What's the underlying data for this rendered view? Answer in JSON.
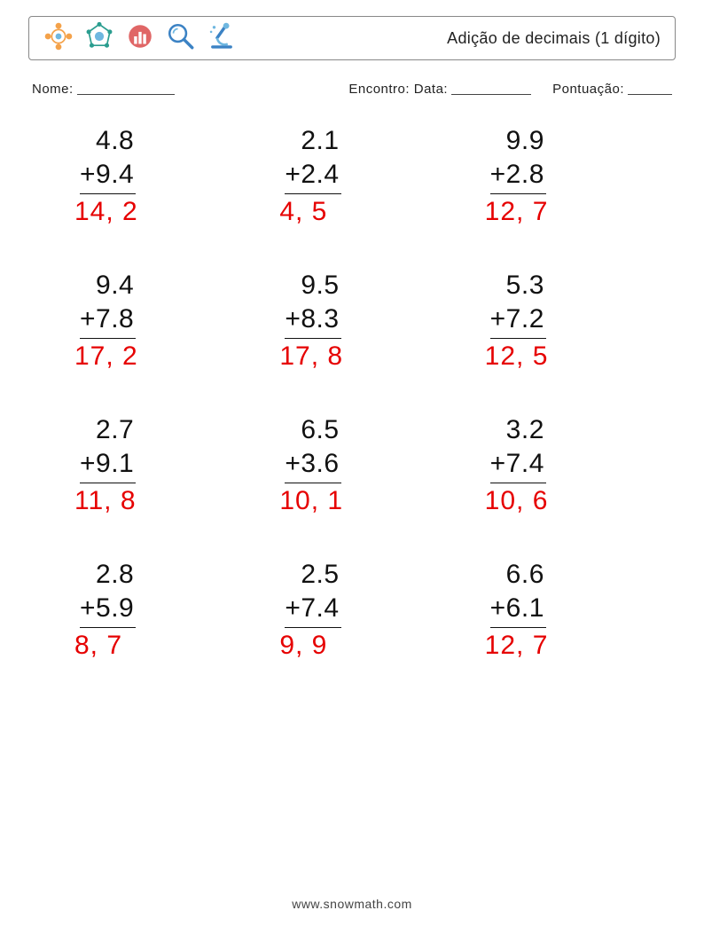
{
  "header": {
    "title": "Adição de decimais (1 dígito)",
    "icons": [
      "network-icon",
      "globe-icon",
      "chart-icon",
      "magnifier-icon",
      "microscope-icon"
    ],
    "icon_palette": {
      "orange": "#f4a24a",
      "blue": "#3b82c4",
      "teal": "#2a9d8f",
      "red": "#e06666",
      "lightblue": "#6fb7e0"
    }
  },
  "meta": {
    "name_label": "Nome:",
    "encounter_label": "Encontro: Data:",
    "score_label": "Pontuação:",
    "name_line_width": 110,
    "date_line_width": 90,
    "score_line_width": 50
  },
  "layout": {
    "rows": 4,
    "cols": 3,
    "problem_fontsize": 30,
    "answer_color": "#e60000",
    "text_color": "#111111",
    "background": "#ffffff"
  },
  "problems": [
    {
      "a": "4.8",
      "b": "+9.4",
      "ans": "14, 2"
    },
    {
      "a": "2.1",
      "b": "+2.4",
      "ans": "4, 5"
    },
    {
      "a": "9.9",
      "b": "+2.8",
      "ans": "12, 7"
    },
    {
      "a": "9.4",
      "b": "+7.8",
      "ans": "17, 2"
    },
    {
      "a": "9.5",
      "b": "+8.3",
      "ans": "17, 8"
    },
    {
      "a": "5.3",
      "b": "+7.2",
      "ans": "12, 5"
    },
    {
      "a": "2.7",
      "b": "+9.1",
      "ans": "11, 8"
    },
    {
      "a": "6.5",
      "b": "+3.6",
      "ans": "10, 1"
    },
    {
      "a": "3.2",
      "b": "+7.4",
      "ans": "10, 6"
    },
    {
      "a": "2.8",
      "b": "+5.9",
      "ans": "8, 7"
    },
    {
      "a": "2.5",
      "b": "+7.4",
      "ans": "9, 9"
    },
    {
      "a": "6.6",
      "b": "+6.1",
      "ans": "12, 7"
    }
  ],
  "footer": {
    "text": "www.snowmath.com"
  }
}
